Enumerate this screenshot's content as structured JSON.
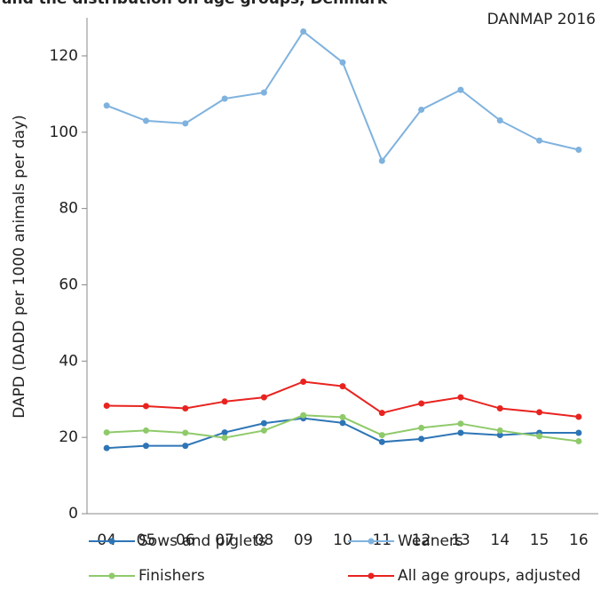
{
  "chart_data": {
    "type": "line",
    "title": "and the distribution on age groups, Denmark",
    "annotation": "DANMAP 2016",
    "y_label": "DAPD (DADD per 1000 animals per day)",
    "categories": [
      "04",
      "05",
      "06",
      "07",
      "08",
      "09",
      "10",
      "11",
      "12",
      "13",
      "14",
      "15",
      "16"
    ],
    "series": [
      {
        "name": "Sows and piglets",
        "color": "#2e75b6",
        "values": [
          17.2,
          17.8,
          17.8,
          21.3,
          23.7,
          25.0,
          23.8,
          18.8,
          19.6,
          21.2,
          20.6,
          21.2,
          21.2
        ]
      },
      {
        "name": "Weaners",
        "color": "#7fb2de",
        "values": [
          107,
          103,
          102.3,
          108.8,
          110.4,
          126.4,
          118.3,
          92.5,
          105.9,
          111.1,
          103.1,
          97.8,
          95.4
        ]
      },
      {
        "name": "Finishers",
        "color": "#8fca6a",
        "values": [
          21.3,
          21.8,
          21.2,
          19.9,
          21.8,
          25.8,
          25.3,
          20.6,
          22.5,
          23.6,
          21.8,
          20.3,
          19.0
        ]
      },
      {
        "name": "All age groups, adjusted",
        "color": "#e8231f",
        "values": [
          28.3,
          28.2,
          27.6,
          29.4,
          30.5,
          34.6,
          33.4,
          26.4,
          28.9,
          30.5,
          27.6,
          26.6,
          25.4
        ]
      }
    ],
    "ylim": [
      0,
      130
    ],
    "yticks": [
      0,
      20,
      40,
      60,
      80,
      100,
      120
    ]
  }
}
